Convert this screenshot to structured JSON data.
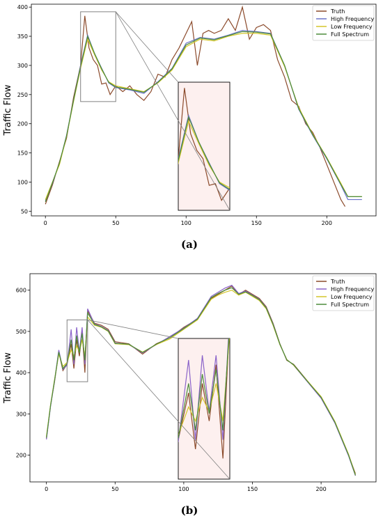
{
  "figure": {
    "caption_a": "(a)",
    "caption_b": "(b)"
  },
  "chart_data": [
    {
      "type": "line",
      "panel": "a",
      "title": "",
      "xlabel": "",
      "ylabel": "Traffic Flow",
      "xlim": [
        -10,
        235
      ],
      "ylim": [
        42,
        405
      ],
      "xticks": [
        0,
        50,
        100,
        150,
        200
      ],
      "yticks": [
        50,
        100,
        150,
        200,
        250,
        300,
        350,
        400
      ],
      "legend_position": "top-right",
      "zoom": {
        "x_range": [
          25,
          50
        ],
        "y_range": [
          238,
          392
        ]
      },
      "series": [
        {
          "name": "Truth",
          "color": "#8b4a2b",
          "x": [
            0,
            5,
            10,
            15,
            20,
            25,
            28,
            31,
            34,
            37,
            40,
            43,
            46,
            50,
            55,
            60,
            65,
            70,
            75,
            80,
            85,
            90,
            95,
            100,
            104,
            108,
            112,
            116,
            120,
            125,
            130,
            135,
            140,
            145,
            150,
            155,
            160,
            165,
            170,
            175,
            180,
            185,
            190,
            195,
            200,
            205,
            210,
            213
          ],
          "values": [
            62,
            95,
            135,
            175,
            245,
            300,
            385,
            330,
            310,
            300,
            268,
            270,
            250,
            265,
            255,
            265,
            250,
            240,
            255,
            285,
            280,
            310,
            330,
            355,
            375,
            300,
            355,
            360,
            355,
            360,
            380,
            360,
            400,
            345,
            365,
            370,
            360,
            310,
            280,
            240,
            230,
            200,
            185,
            160,
            130,
            100,
            70,
            58
          ]
        },
        {
          "name": "High Frequency",
          "color": "#6a72c8",
          "x": [
            0,
            5,
            10,
            15,
            20,
            25,
            30,
            35,
            40,
            45,
            50,
            60,
            70,
            80,
            90,
            100,
            110,
            120,
            130,
            140,
            150,
            160,
            170,
            180,
            190,
            200,
            210,
            215,
            225
          ],
          "values": [
            68,
            98,
            132,
            180,
            240,
            300,
            352,
            320,
            295,
            270,
            262,
            258,
            252,
            272,
            295,
            338,
            348,
            345,
            352,
            360,
            358,
            355,
            300,
            225,
            180,
            140,
            95,
            70,
            70
          ]
        },
        {
          "name": "Low Frequency",
          "color": "#d4c62a",
          "x": [
            0,
            5,
            10,
            15,
            20,
            25,
            30,
            35,
            40,
            45,
            50,
            60,
            70,
            80,
            90,
            100,
            110,
            120,
            130,
            140,
            150,
            160,
            170,
            180,
            190,
            200,
            210,
            215,
            225
          ],
          "values": [
            70,
            100,
            130,
            178,
            238,
            295,
            345,
            318,
            292,
            272,
            265,
            260,
            255,
            270,
            292,
            332,
            345,
            342,
            350,
            355,
            355,
            352,
            298,
            228,
            182,
            142,
            98,
            75,
            75
          ]
        },
        {
          "name": "Full Spectrum",
          "color": "#4c8c3a",
          "x": [
            0,
            5,
            10,
            15,
            20,
            25,
            30,
            35,
            40,
            45,
            50,
            60,
            70,
            80,
            90,
            100,
            110,
            120,
            130,
            140,
            150,
            160,
            170,
            180,
            190,
            200,
            210,
            215,
            225
          ],
          "values": [
            66,
            99,
            133,
            179,
            240,
            298,
            350,
            320,
            294,
            271,
            263,
            259,
            254,
            271,
            294,
            335,
            347,
            344,
            351,
            358,
            357,
            354,
            300,
            226,
            181,
            141,
            96,
            75,
            75
          ]
        }
      ]
    },
    {
      "type": "line",
      "panel": "b",
      "title": "",
      "xlabel": "",
      "ylabel": "Traffic Flow",
      "xlim": [
        -12,
        240
      ],
      "ylim": [
        135,
        640
      ],
      "xticks": [
        0,
        50,
        100,
        150,
        200
      ],
      "yticks": [
        200,
        300,
        400,
        500,
        600
      ],
      "legend_position": "top-right",
      "zoom": {
        "x_range": [
          15,
          30
        ],
        "y_range": [
          378,
          528
        ]
      },
      "series": [
        {
          "name": "Truth",
          "color": "#8b4a2b",
          "x": [
            0,
            3,
            6,
            9,
            12,
            15,
            18,
            20,
            22,
            24,
            26,
            28,
            30,
            35,
            40,
            45,
            50,
            60,
            70,
            80,
            90,
            100,
            110,
            120,
            125,
            130,
            135,
            140,
            145,
            150,
            155,
            160,
            165,
            170,
            175,
            180,
            190,
            200,
            210,
            220,
            225
          ],
          "values": [
            240,
            320,
            380,
            450,
            405,
            420,
            470,
            410,
            480,
            440,
            500,
            400,
            550,
            520,
            515,
            505,
            475,
            470,
            445,
            470,
            485,
            510,
            530,
            580,
            590,
            600,
            610,
            590,
            600,
            590,
            580,
            560,
            520,
            470,
            430,
            420,
            380,
            340,
            280,
            200,
            155
          ]
        },
        {
          "name": "High Frequency",
          "color": "#8a63c9",
          "x": [
            0,
            3,
            6,
            9,
            12,
            15,
            18,
            20,
            22,
            24,
            26,
            28,
            30,
            35,
            40,
            45,
            50,
            60,
            70,
            80,
            90,
            100,
            110,
            120,
            125,
            130,
            135,
            140,
            145,
            150,
            155,
            160,
            165,
            170,
            175,
            180,
            190,
            200,
            210,
            220,
            225
          ],
          "values": [
            238,
            318,
            382,
            455,
            408,
            418,
            505,
            420,
            510,
            450,
            510,
            420,
            555,
            518,
            512,
            502,
            472,
            468,
            448,
            468,
            488,
            508,
            532,
            585,
            595,
            605,
            612,
            592,
            598,
            588,
            578,
            558,
            518,
            468,
            432,
            418,
            378,
            338,
            278,
            198,
            150
          ]
        },
        {
          "name": "Low Frequency",
          "color": "#d4c62a",
          "x": [
            0,
            3,
            6,
            9,
            12,
            15,
            18,
            20,
            22,
            24,
            26,
            28,
            30,
            35,
            40,
            45,
            50,
            60,
            70,
            80,
            90,
            100,
            110,
            120,
            125,
            130,
            135,
            140,
            145,
            150,
            155,
            160,
            165,
            170,
            175,
            180,
            190,
            200,
            210,
            220,
            225
          ],
          "values": [
            245,
            322,
            385,
            445,
            415,
            425,
            455,
            440,
            465,
            450,
            480,
            440,
            535,
            515,
            510,
            500,
            470,
            468,
            450,
            468,
            482,
            505,
            528,
            578,
            588,
            595,
            600,
            588,
            595,
            585,
            575,
            555,
            515,
            468,
            432,
            418,
            380,
            342,
            282,
            202,
            152
          ]
        },
        {
          "name": "Full Spectrum",
          "color": "#4c8c3a",
          "x": [
            0,
            3,
            6,
            9,
            12,
            15,
            18,
            20,
            22,
            24,
            26,
            28,
            30,
            35,
            40,
            45,
            50,
            60,
            70,
            80,
            90,
            100,
            110,
            120,
            125,
            130,
            135,
            140,
            145,
            150,
            155,
            160,
            165,
            170,
            175,
            180,
            190,
            200,
            210,
            220,
            225
          ],
          "values": [
            242,
            320,
            383,
            450,
            410,
            422,
            480,
            430,
            490,
            448,
            495,
            430,
            545,
            517,
            511,
            501,
            471,
            469,
            449,
            469,
            485,
            507,
            530,
            582,
            592,
            600,
            606,
            590,
            596,
            587,
            577,
            557,
            517,
            469,
            431,
            419,
            379,
            340,
            280,
            200,
            151
          ]
        }
      ]
    }
  ]
}
